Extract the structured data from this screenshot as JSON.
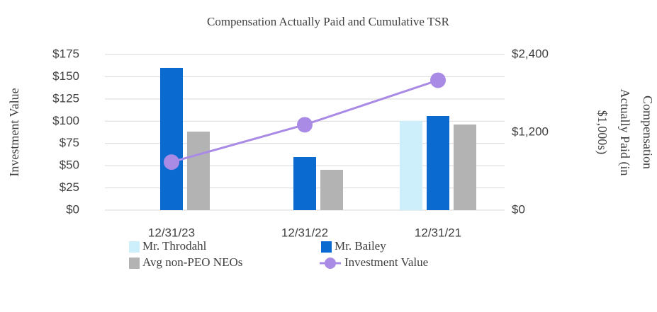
{
  "chart_data": {
    "type": "combo",
    "title": "Compensation Actually Paid and Cumulative TSR",
    "ylabel": "Investment Value",
    "y2label": [
      "Compensation",
      "Actually Paid (in",
      "$1,000s)"
    ],
    "categories": [
      "12/31/23",
      "12/31/22",
      "12/31/21"
    ],
    "ylim": [
      0,
      175
    ],
    "yticks": [
      {
        "value": 0,
        "label": "$0"
      },
      {
        "value": 25,
        "label": "$25"
      },
      {
        "value": 50,
        "label": "$50"
      },
      {
        "value": 75,
        "label": "$75"
      },
      {
        "value": 100,
        "label": "$100"
      },
      {
        "value": 125,
        "label": "$125"
      },
      {
        "value": 150,
        "label": "$150"
      },
      {
        "value": 175,
        "label": "$175"
      }
    ],
    "y2lim": [
      0,
      2400
    ],
    "y2ticks": [
      {
        "value": 0,
        "label": "$0"
      },
      {
        "value": 1200,
        "label": "$1,200"
      },
      {
        "value": 2400,
        "label": "$2,400"
      }
    ],
    "grid": true,
    "legend": "bottom",
    "series": [
      {
        "name": "Mr. Throdahl",
        "type": "bar",
        "axis": "y2",
        "color": "#cdeefb",
        "values": [
          null,
          null,
          1375
        ]
      },
      {
        "name": "Mr. Bailey",
        "type": "bar",
        "axis": "y2",
        "color": "#0a6ad0",
        "values": [
          2193,
          818,
          1451
        ]
      },
      {
        "name": "Avg non-PEO NEOs",
        "type": "bar",
        "axis": "y2",
        "color": "#b3b3b3",
        "values": [
          1211,
          622,
          1320
        ]
      },
      {
        "name": "Investment Value",
        "type": "line",
        "axis": "y",
        "color": "#a98be6",
        "values": [
          54,
          96,
          146
        ]
      }
    ]
  }
}
